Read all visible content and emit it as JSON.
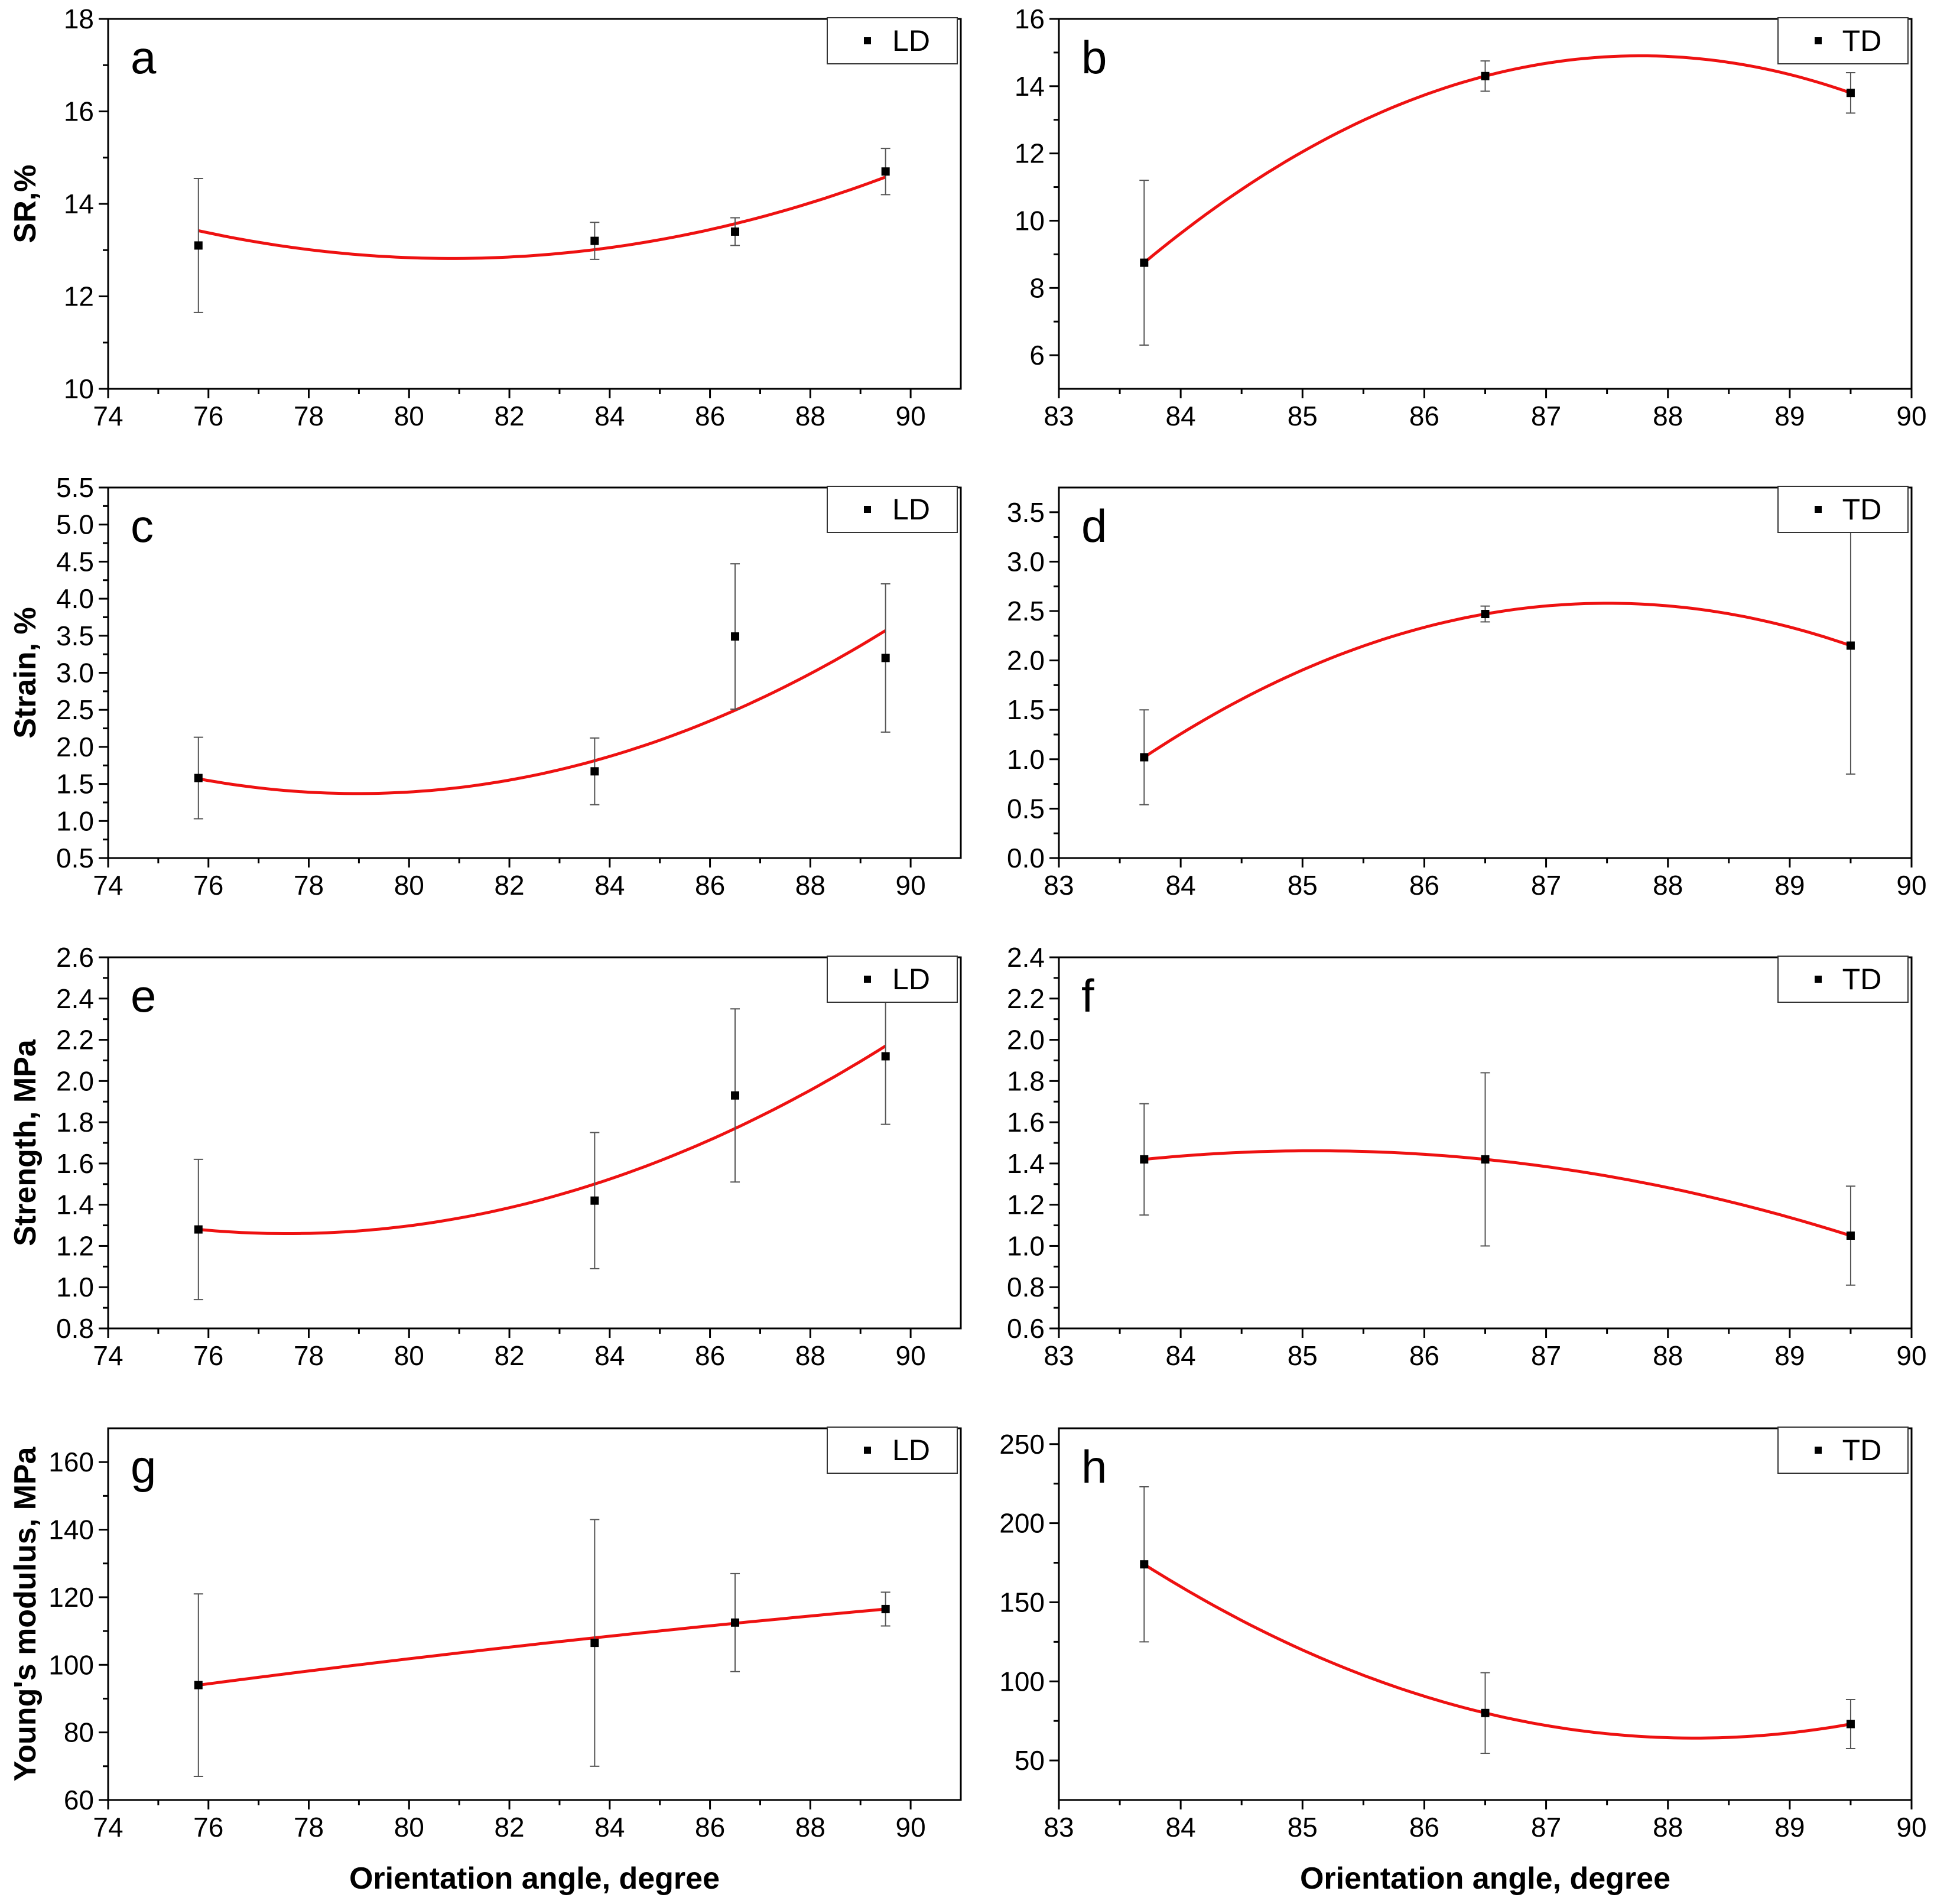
{
  "shared": {
    "xlabel": "Orientation angle, degree",
    "colors": {
      "fit": "#ee1111",
      "marker": "#000000",
      "errorbar": "#555555",
      "axis": "#000000"
    }
  },
  "chart_data": [
    {
      "id": "a",
      "type": "scatter",
      "letter": "a",
      "legend": "LD",
      "ylabel": "SR,%",
      "xlabel": "",
      "xlim": [
        74,
        91
      ],
      "ylim": [
        10,
        18
      ],
      "xticks": [
        74,
        76,
        78,
        80,
        82,
        84,
        86,
        88,
        90
      ],
      "yticks": [
        10,
        12,
        14,
        16,
        18
      ],
      "points": [
        {
          "x": 75.8,
          "y": 13.1,
          "err": 1.45
        },
        {
          "x": 83.7,
          "y": 13.2,
          "err": 0.4
        },
        {
          "x": 86.5,
          "y": 13.4,
          "err": 0.3
        },
        {
          "x": 89.5,
          "y": 14.7,
          "err": 0.5
        }
      ],
      "fit": {
        "type": "quadratic",
        "points": [
          [
            75.8,
            13.42
          ],
          [
            81.0,
            12.82
          ],
          [
            89.5,
            14.58
          ]
        ]
      }
    },
    {
      "id": "b",
      "type": "scatter",
      "letter": "b",
      "legend": "TD",
      "ylabel": "",
      "xlabel": "",
      "xlim": [
        83,
        90
      ],
      "ylim": [
        5,
        16
      ],
      "xticks": [
        83,
        84,
        85,
        86,
        87,
        88,
        89,
        90
      ],
      "yticks": [
        6,
        8,
        10,
        12,
        14,
        16
      ],
      "points": [
        {
          "x": 83.7,
          "y": 8.75,
          "err": 2.45
        },
        {
          "x": 86.5,
          "y": 14.3,
          "err": 0.45
        },
        {
          "x": 89.5,
          "y": 13.8,
          "err": 0.6
        }
      ],
      "fit": {
        "type": "quadratic",
        "points": [
          [
            83.7,
            8.75
          ],
          [
            86.5,
            14.3
          ],
          [
            89.5,
            13.8
          ]
        ]
      }
    },
    {
      "id": "c",
      "type": "scatter",
      "letter": "c",
      "legend": "LD",
      "ylabel": "Strain, %",
      "xlabel": "",
      "xlim": [
        74,
        91
      ],
      "ylim": [
        0.5,
        5.5
      ],
      "xticks": [
        74,
        76,
        78,
        80,
        82,
        84,
        86,
        88,
        90
      ],
      "yticks": [
        0.5,
        1.0,
        1.5,
        2.0,
        2.5,
        3.0,
        3.5,
        4.0,
        4.5,
        5.0,
        5.5
      ],
      "points": [
        {
          "x": 75.8,
          "y": 1.58,
          "err": 0.55
        },
        {
          "x": 83.7,
          "y": 1.67,
          "err": 0.45
        },
        {
          "x": 86.5,
          "y": 3.49,
          "err": 0.98
        },
        {
          "x": 89.5,
          "y": 3.2,
          "err": 1.0
        }
      ],
      "fit": {
        "type": "quadratic",
        "points": [
          [
            75.8,
            1.57
          ],
          [
            79.0,
            1.37
          ],
          [
            89.5,
            3.57
          ]
        ]
      }
    },
    {
      "id": "d",
      "type": "scatter",
      "letter": "d",
      "legend": "TD",
      "ylabel": "",
      "xlabel": "",
      "xlim": [
        83,
        90
      ],
      "ylim": [
        0.0,
        3.75
      ],
      "xticks": [
        83,
        84,
        85,
        86,
        87,
        88,
        89,
        90
      ],
      "yticks": [
        0.0,
        0.5,
        1.0,
        1.5,
        2.0,
        2.5,
        3.0,
        3.5
      ],
      "points": [
        {
          "x": 83.7,
          "y": 1.02,
          "err": 0.48
        },
        {
          "x": 86.5,
          "y": 2.47,
          "err": 0.08
        },
        {
          "x": 89.5,
          "y": 2.15,
          "err": 1.3
        }
      ],
      "fit": {
        "type": "quadratic",
        "points": [
          [
            83.7,
            1.02
          ],
          [
            86.5,
            2.47
          ],
          [
            89.5,
            2.15
          ]
        ]
      }
    },
    {
      "id": "e",
      "type": "scatter",
      "letter": "e",
      "legend": "LD",
      "ylabel": "Strength, MPa",
      "xlabel": "",
      "xlim": [
        74,
        91
      ],
      "ylim": [
        0.8,
        2.6
      ],
      "xticks": [
        74,
        76,
        78,
        80,
        82,
        84,
        86,
        88,
        90
      ],
      "yticks": [
        0.8,
        1.0,
        1.2,
        1.4,
        1.6,
        1.8,
        2.0,
        2.2,
        2.4,
        2.6
      ],
      "points": [
        {
          "x": 75.8,
          "y": 1.28,
          "err": 0.34
        },
        {
          "x": 83.7,
          "y": 1.42,
          "err": 0.33
        },
        {
          "x": 86.5,
          "y": 1.93,
          "err": 0.42
        },
        {
          "x": 89.5,
          "y": 2.12,
          "err": 0.33
        }
      ],
      "fit": {
        "type": "quadratic",
        "points": [
          [
            75.8,
            1.28
          ],
          [
            77.5,
            1.26
          ],
          [
            89.5,
            2.17
          ]
        ]
      }
    },
    {
      "id": "f",
      "type": "scatter",
      "letter": "f",
      "legend": "TD",
      "ylabel": "",
      "xlabel": "",
      "xlim": [
        83,
        90
      ],
      "ylim": [
        0.6,
        2.4
      ],
      "xticks": [
        83,
        84,
        85,
        86,
        87,
        88,
        89,
        90
      ],
      "yticks": [
        0.6,
        0.8,
        1.0,
        1.2,
        1.4,
        1.6,
        1.8,
        2.0,
        2.2,
        2.4
      ],
      "points": [
        {
          "x": 83.7,
          "y": 1.42,
          "err": 0.27
        },
        {
          "x": 86.5,
          "y": 1.42,
          "err": 0.42
        },
        {
          "x": 89.5,
          "y": 1.05,
          "err": 0.24
        }
      ],
      "fit": {
        "type": "quadratic",
        "points": [
          [
            83.7,
            1.42
          ],
          [
            86.5,
            1.42
          ],
          [
            89.5,
            1.05
          ]
        ]
      }
    },
    {
      "id": "g",
      "type": "scatter",
      "letter": "g",
      "legend": "LD",
      "ylabel": "Young's modulus, MPa",
      "xlabel": "Orientation angle, degree",
      "xlim": [
        74,
        91
      ],
      "ylim": [
        60,
        170
      ],
      "xticks": [
        74,
        76,
        78,
        80,
        82,
        84,
        86,
        88,
        90
      ],
      "yticks": [
        60,
        80,
        100,
        120,
        140,
        160
      ],
      "points": [
        {
          "x": 75.8,
          "y": 94,
          "err": 27
        },
        {
          "x": 83.7,
          "y": 106.5,
          "err": 36.5
        },
        {
          "x": 86.5,
          "y": 112.5,
          "err": 14.5
        },
        {
          "x": 89.5,
          "y": 116.5,
          "err": 5
        }
      ],
      "fit": {
        "type": "quadratic",
        "points": [
          [
            75.8,
            94
          ],
          [
            83.7,
            108
          ],
          [
            89.5,
            116.5
          ]
        ]
      }
    },
    {
      "id": "h",
      "type": "scatter",
      "letter": "h",
      "legend": "TD",
      "ylabel": "",
      "xlabel": "Orientation angle, degree",
      "xlim": [
        83,
        90
      ],
      "ylim": [
        25,
        260
      ],
      "xticks": [
        83,
        84,
        85,
        86,
        87,
        88,
        89,
        90
      ],
      "yticks": [
        50,
        100,
        150,
        200,
        250
      ],
      "points": [
        {
          "x": 83.7,
          "y": 174,
          "err": 49
        },
        {
          "x": 86.5,
          "y": 80,
          "err": 25.5
        },
        {
          "x": 89.5,
          "y": 73,
          "err": 15.5
        }
      ],
      "fit": {
        "type": "quadratic",
        "points": [
          [
            83.7,
            174
          ],
          [
            86.5,
            80
          ],
          [
            89.5,
            73
          ]
        ]
      }
    }
  ]
}
